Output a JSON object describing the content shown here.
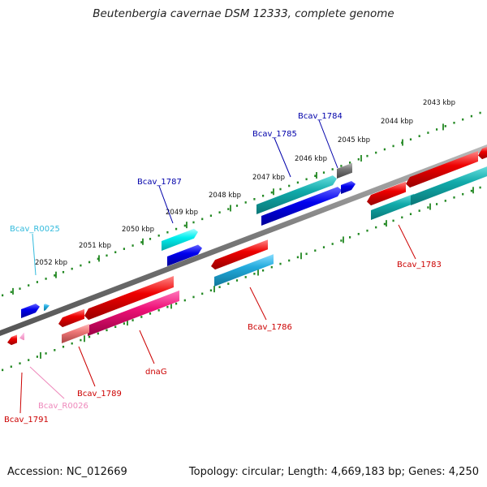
{
  "title": "Beutenbergia cavernae DSM 12333, complete genome",
  "footer": {
    "accession": "Accession: NC_012669",
    "summary": "Topology: circular; Length: 4,669,183 bp; Genes: 4,250"
  },
  "scale_labels": [
    "2043 kbp",
    "2044 kbp",
    "2045 kbp",
    "2046 kbp",
    "2047 kbp",
    "2048 kbp",
    "2049 kbp",
    "2050 kbp",
    "2051 kbp",
    "2052 kbp"
  ],
  "genes": [
    {
      "id": "Bcav_1784",
      "color": "#0000aa"
    },
    {
      "id": "Bcav_1785",
      "color": "#0000aa"
    },
    {
      "id": "Bcav_1787",
      "color": "#0000aa"
    },
    {
      "id": "Bcav_R0025",
      "color": "#33bbdd"
    },
    {
      "id": "Bcav_1783",
      "color": "#cc0000"
    },
    {
      "id": "Bcav_1786",
      "color": "#cc0000"
    },
    {
      "id": "dnaG",
      "color": "#cc0000"
    },
    {
      "id": "Bcav_1789",
      "color": "#cc0000"
    },
    {
      "id": "Bcav_R0026",
      "color": "#ee88bb"
    },
    {
      "id": "Bcav_1791",
      "color": "#cc0000"
    }
  ],
  "colors": {
    "blue": "#0000dd",
    "teal": "#11aaaa",
    "cyan": "#00dddd",
    "sky": "#22aadd",
    "red": "#ee0000",
    "magenta": "#ee1177",
    "salmon": "#ee7777",
    "gray": "#777777",
    "dots": "#228822"
  }
}
